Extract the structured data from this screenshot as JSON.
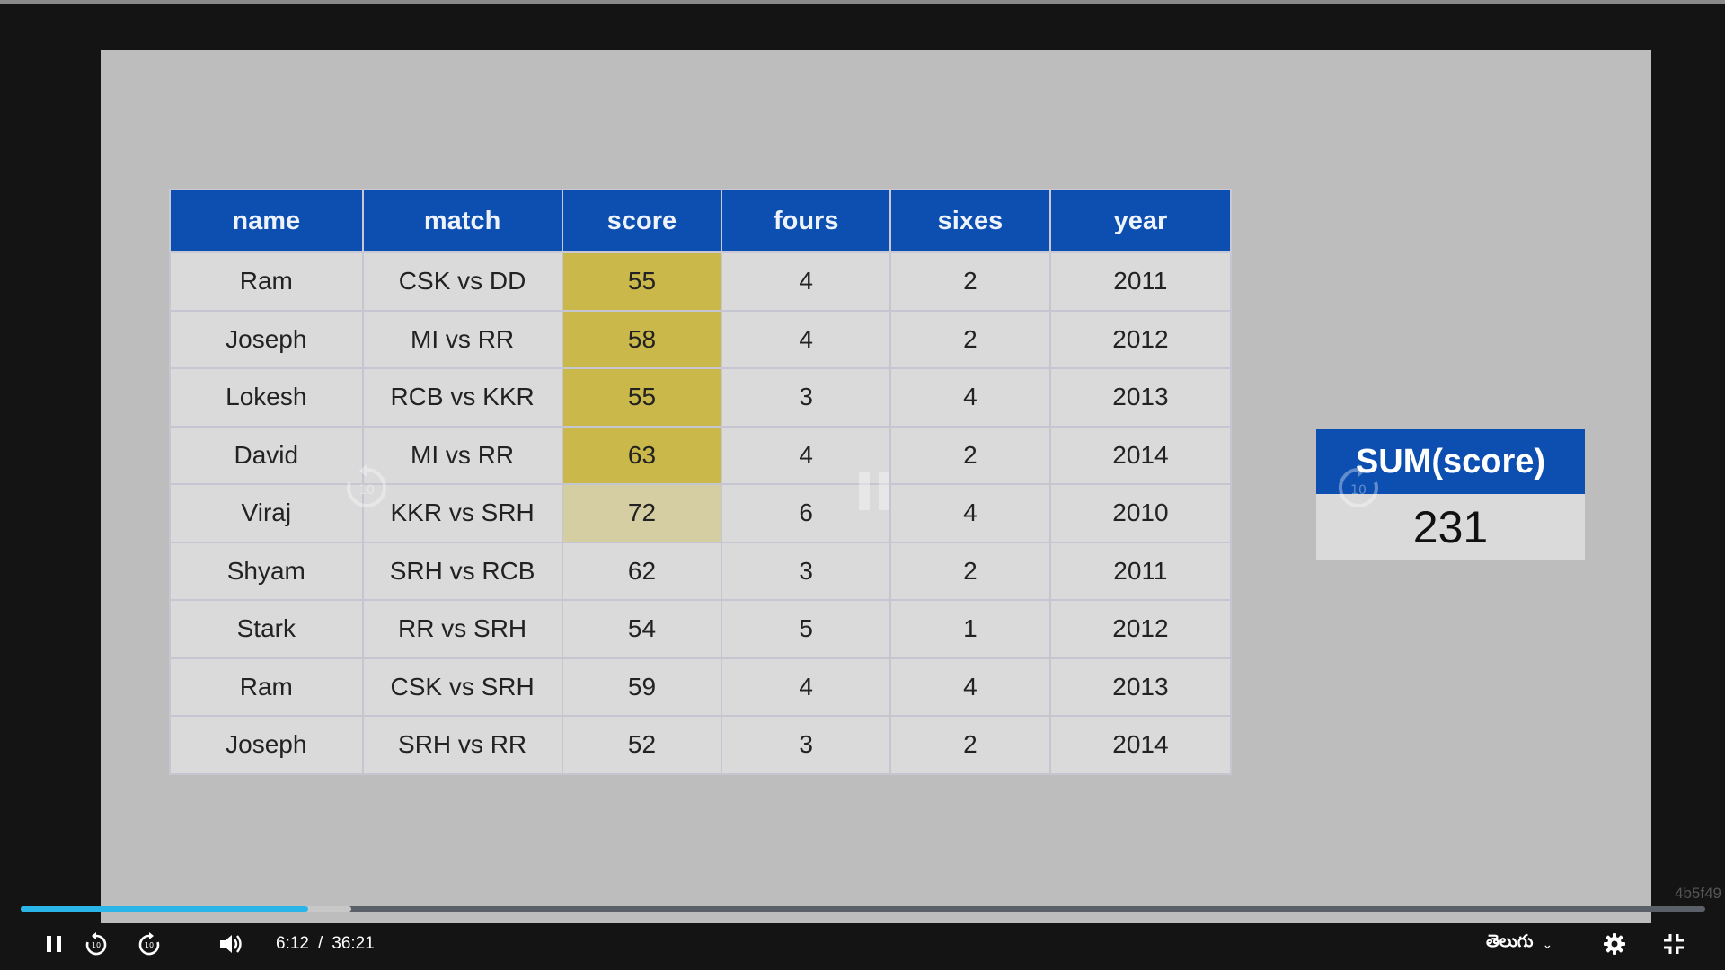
{
  "slide": {
    "table": {
      "columns": [
        "name",
        "match",
        "score",
        "fours",
        "sixes",
        "year"
      ],
      "rows": [
        [
          "Ram",
          "CSK vs DD",
          "55",
          "4",
          "2",
          "2011"
        ],
        [
          "Joseph",
          "MI vs RR",
          "58",
          "4",
          "2",
          "2012"
        ],
        [
          "Lokesh",
          "RCB vs KKR",
          "55",
          "3",
          "4",
          "2013"
        ],
        [
          "David",
          "MI vs RR",
          "63",
          "4",
          "2",
          "2014"
        ],
        [
          "Viraj",
          "KKR vs SRH",
          "72",
          "6",
          "4",
          "2010"
        ],
        [
          "Shyam",
          "SRH vs RCB",
          "62",
          "3",
          "2",
          "2011"
        ],
        [
          "Stark",
          "RR vs SRH",
          "54",
          "5",
          "1",
          "2012"
        ],
        [
          "Ram",
          "CSK vs SRH",
          "59",
          "4",
          "4",
          "2013"
        ],
        [
          "Joseph",
          "SRH vs RR",
          "52",
          "3",
          "2",
          "2014"
        ]
      ],
      "highlighted_score_rows": [
        0,
        1,
        2,
        3
      ],
      "faded_highlight_rows": [
        4
      ],
      "highlight_color": "#cbb84a",
      "header_color": "#0d4fb0"
    },
    "sum_box": {
      "title": "SUM(score)",
      "value": "231"
    }
  },
  "watermark": "4b5f49",
  "player": {
    "current_time": "6:12",
    "separator": "/",
    "duration": "36:21",
    "progress_played_fraction": 0.1705,
    "progress_buffered_fraction": 0.1965,
    "accent_color": "#29b5e8",
    "language": "తెలుగు",
    "icons": [
      "pause-icon",
      "rewind-10-icon",
      "forward-10-icon",
      "volume-icon",
      "settings-icon",
      "exit-fullscreen-icon"
    ],
    "overlay_icons": [
      "rewind-10-icon",
      "pause-icon",
      "forward-10-icon"
    ]
  }
}
